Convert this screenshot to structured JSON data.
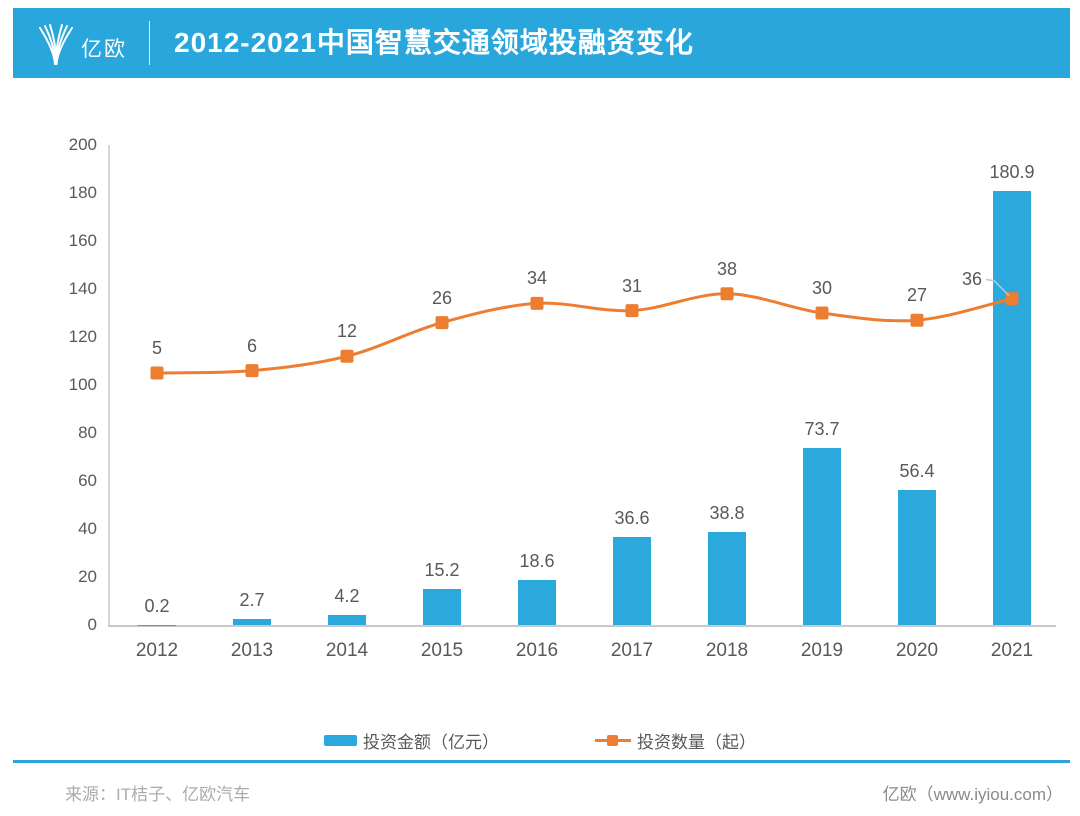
{
  "header": {
    "logo_text": "亿欧",
    "title": "2012-2021中国智慧交通领域投融资变化"
  },
  "colors": {
    "brand_blue": "#29A6DC",
    "bar_blue": "#2BA9DC",
    "line_orange": "#ED7D31",
    "label_gray": "#595959",
    "axis_gray": "#C8C8C8",
    "leader_blue": "#A9C9E9"
  },
  "chart_data": {
    "type": "bar",
    "subtype": "combo bar+line",
    "title": "2012-2021中国智慧交通领域投融资变化",
    "categories": [
      "2012",
      "2013",
      "2014",
      "2015",
      "2016",
      "2017",
      "2018",
      "2019",
      "2020",
      "2021"
    ],
    "series": [
      {
        "name": "投资金额（亿元）",
        "type": "bar",
        "color": "#2BA9DC",
        "values": [
          0.2,
          2.7,
          4.2,
          15.2,
          18.6,
          36.6,
          38.8,
          73.7,
          56.4,
          180.9
        ]
      },
      {
        "name": "投资数量（起）",
        "type": "line",
        "color": "#ED7D31",
        "marker": "square",
        "values": [
          5,
          6,
          12,
          26,
          34,
          31,
          38,
          30,
          27,
          36
        ],
        "plot_note": "line is drawn at (100 + value) on the left axis (hidden secondary axis)"
      }
    ],
    "xlabel": "",
    "ylabel": "",
    "ylim": [
      0,
      200
    ],
    "y_ticks": [
      0,
      20,
      40,
      60,
      80,
      100,
      120,
      140,
      160,
      180,
      200
    ],
    "grid": false,
    "legend_position": "bottom",
    "data_labels": true
  },
  "legend": {
    "items": [
      {
        "label": "投资金额（亿元）",
        "swatch": "bar"
      },
      {
        "label": "投资数量（起）",
        "swatch": "line-marker"
      }
    ]
  },
  "footer": {
    "source": "来源：IT桔子、亿欧汽车",
    "credit": "亿欧（www.iyiou.com）"
  }
}
